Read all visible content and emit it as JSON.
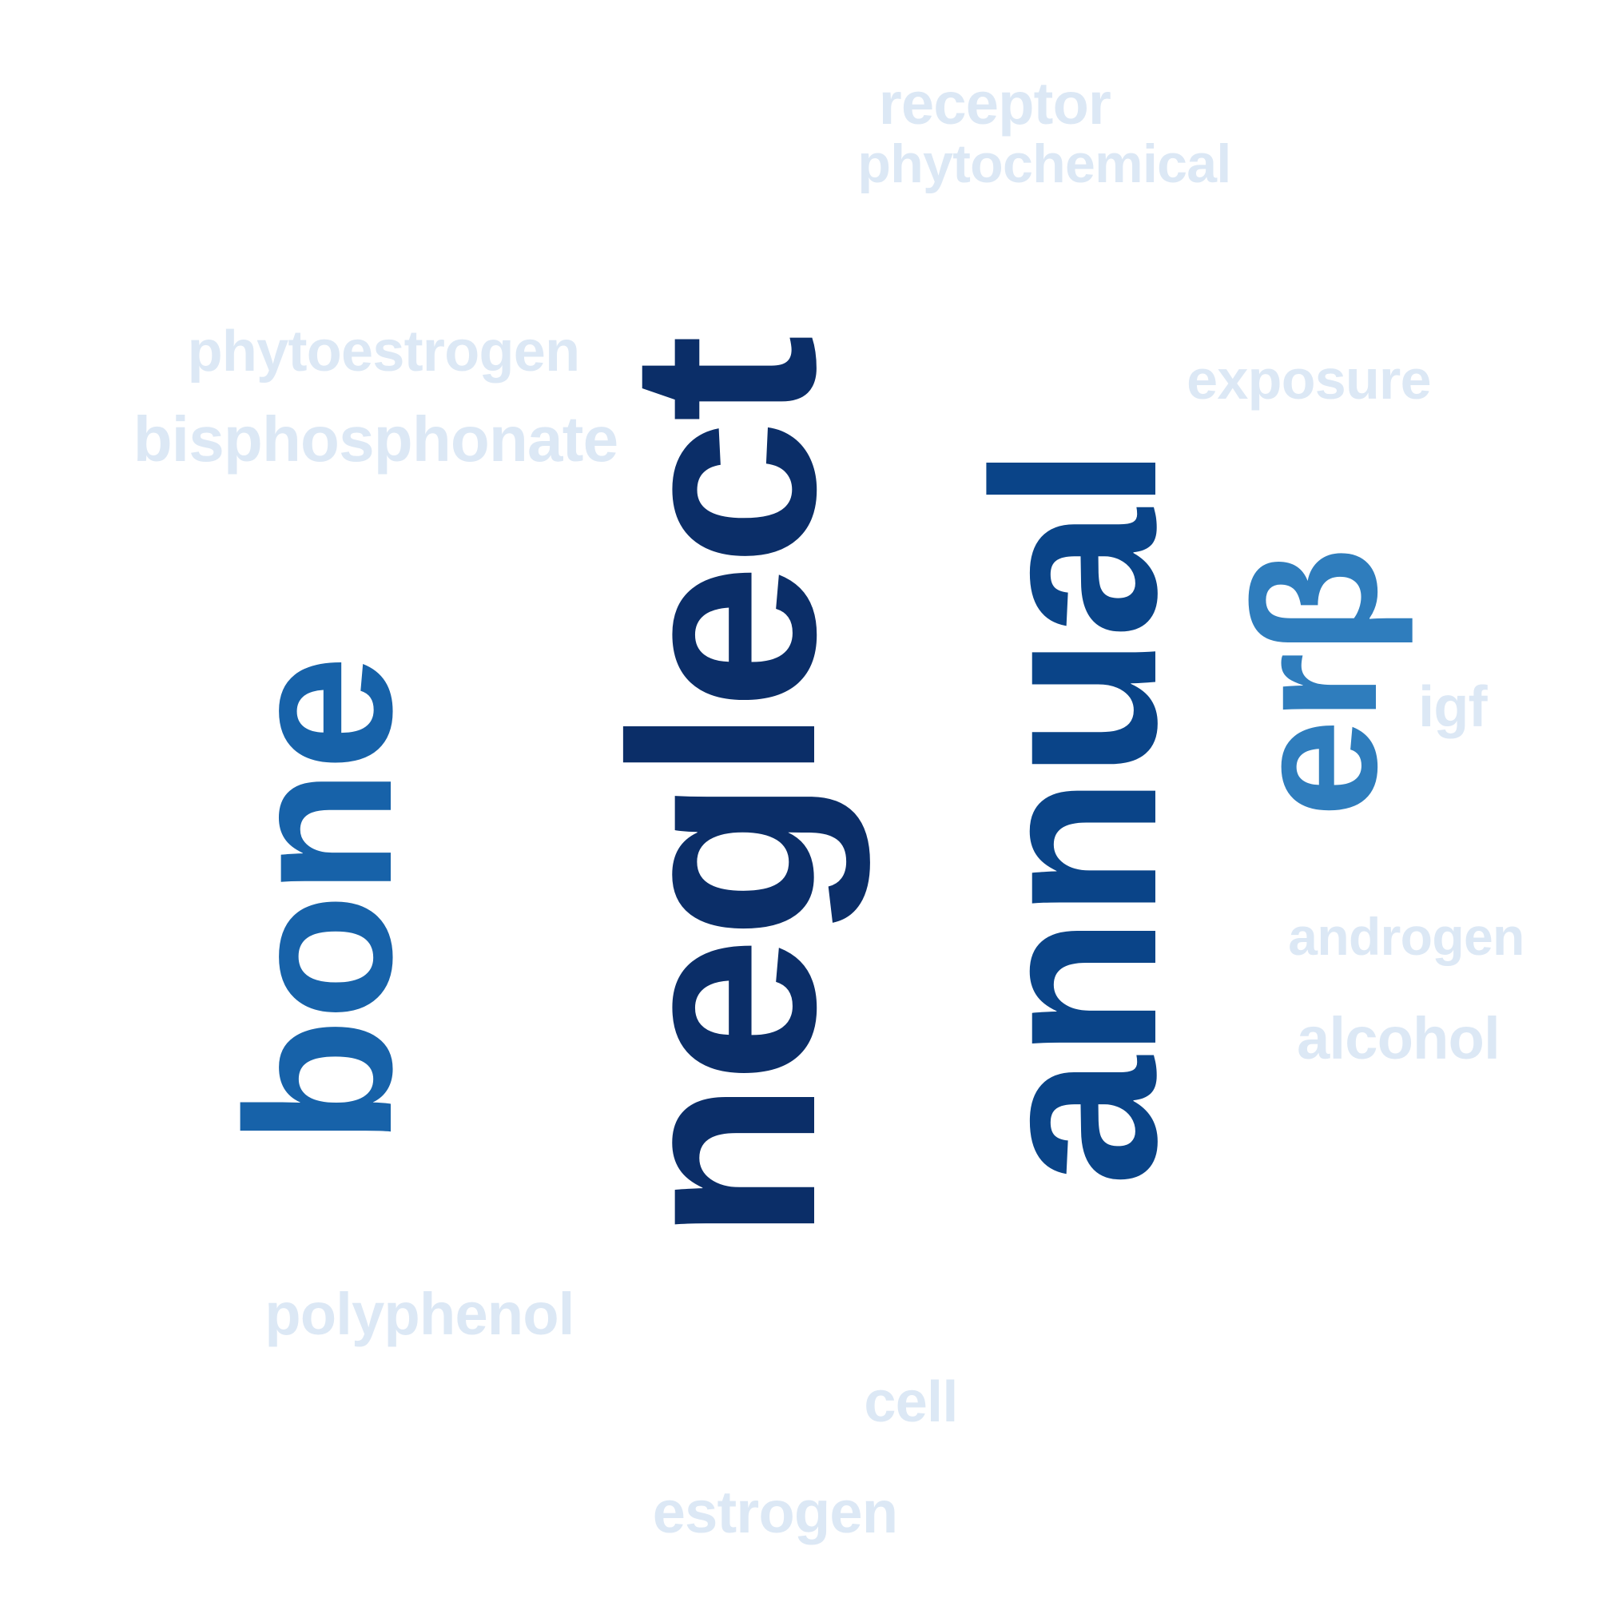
{
  "word_cloud": {
    "palette": {
      "darkest": "#0b2e68",
      "dark": "#0a4488",
      "medium": "#1762a9",
      "light": "#2f7dbd",
      "faint": "#dce8f5"
    },
    "words": [
      {
        "id": "neglect",
        "text": "neglect",
        "weight": 1.0,
        "color": "#0b2e68",
        "orientation": "vertical"
      },
      {
        "id": "annual",
        "text": "annual",
        "weight": 0.9,
        "color": "#0a4488",
        "orientation": "vertical"
      },
      {
        "id": "bone",
        "text": "bone",
        "weight": 0.8,
        "color": "#1762a9",
        "orientation": "vertical"
      },
      {
        "id": "erb",
        "text": "erβ",
        "weight": 0.6,
        "color": "#2f7dbd",
        "orientation": "vertical"
      },
      {
        "id": "receptor",
        "text": "receptor",
        "weight": 0.2,
        "color": "#dce8f5",
        "orientation": "horizontal"
      },
      {
        "id": "phytochemical",
        "text": "phytochemical",
        "weight": 0.2,
        "color": "#dce8f5",
        "orientation": "horizontal"
      },
      {
        "id": "phytoestrogen",
        "text": "phytoestrogen",
        "weight": 0.2,
        "color": "#dce8f5",
        "orientation": "horizontal"
      },
      {
        "id": "bisphosphonate",
        "text": "bisphosphonate",
        "weight": 0.2,
        "color": "#dce8f5",
        "orientation": "horizontal"
      },
      {
        "id": "exposure",
        "text": "exposure",
        "weight": 0.2,
        "color": "#dce8f5",
        "orientation": "horizontal"
      },
      {
        "id": "igf",
        "text": "igf",
        "weight": 0.2,
        "color": "#dce8f5",
        "orientation": "horizontal"
      },
      {
        "id": "androgen",
        "text": "androgen",
        "weight": 0.2,
        "color": "#dce8f5",
        "orientation": "horizontal"
      },
      {
        "id": "alcohol",
        "text": "alcohol",
        "weight": 0.2,
        "color": "#dce8f5",
        "orientation": "horizontal"
      },
      {
        "id": "polyphenol",
        "text": "polyphenol",
        "weight": 0.2,
        "color": "#dce8f5",
        "orientation": "horizontal"
      },
      {
        "id": "cell",
        "text": "cell",
        "weight": 0.2,
        "color": "#dce8f5",
        "orientation": "horizontal"
      },
      {
        "id": "estrogen",
        "text": "estrogen",
        "weight": 0.2,
        "color": "#dce8f5",
        "orientation": "horizontal"
      }
    ]
  }
}
